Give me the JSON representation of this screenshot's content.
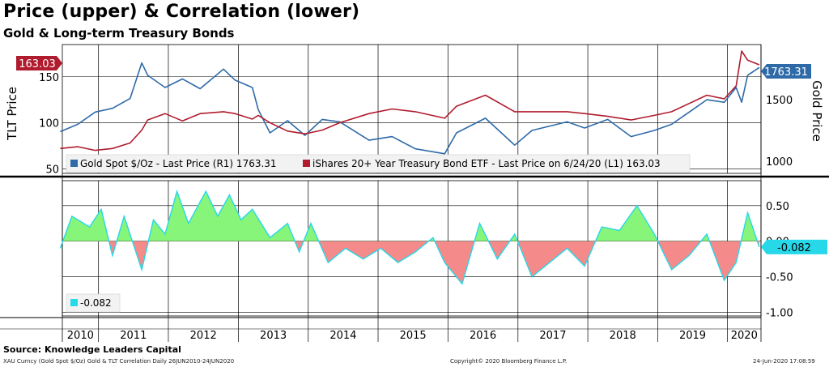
{
  "header": {
    "title": "Price (upper) & Correlation (lower)",
    "subtitle": "Gold & Long-term Treasury Bonds"
  },
  "footer": {
    "source": "Source: Knowledge Leaders Capital",
    "description": "XAU Curncy (Gold Spot  $/Oz) Gold & TLT Correlation  Daily 26JUN2010-24JUN2020",
    "copyright": "Copyright© 2020 Bloomberg Finance L.P.",
    "timestamp": "24-Jun-2020  17:08:59"
  },
  "colors": {
    "gold": "#2f6aa8",
    "tlt": "#b01c2e",
    "positive": "#86f57a",
    "negative": "#f48a8a",
    "corr_line": "#27d8e8",
    "panel_bg": "#ffffff"
  },
  "chart_data": [
    {
      "type": "line",
      "name": "upper-price",
      "x_range": [
        "2010-06-26",
        "2020-06-24"
      ],
      "ylabel_left": "TLT Price",
      "ylabel_right": "Gold Price",
      "ylim_left": [
        45,
        185
      ],
      "ylim_right": [
        900,
        1950
      ],
      "yticks_left": [
        50,
        100,
        150
      ],
      "yticks_right": [
        1000,
        1500
      ],
      "legend": {
        "position": "bottom",
        "items": [
          {
            "label": "Gold Spot $/Oz - Last Price (R1) 1763.31",
            "color": "#2f6aa8"
          },
          {
            "label": "iShares 20+ Year Treasury Bond ETF - Last Price on 6/24/20 (L1) 163.03",
            "color": "#b01c2e"
          }
        ]
      },
      "last_values": {
        "tlt": "163.03",
        "gold": "1763.31"
      },
      "series": [
        {
          "name": "Gold Spot $/Oz",
          "axis": "right",
          "x": [
            "2010-06",
            "2010-09",
            "2010-12",
            "2011-03",
            "2011-06",
            "2011-08",
            "2011-09",
            "2011-12",
            "2012-03",
            "2012-06",
            "2012-10",
            "2012-12",
            "2013-03",
            "2013-04",
            "2013-06",
            "2013-09",
            "2013-12",
            "2014-03",
            "2014-06",
            "2014-11",
            "2015-03",
            "2015-07",
            "2015-12",
            "2016-02",
            "2016-07",
            "2016-12",
            "2017-03",
            "2017-09",
            "2017-12",
            "2018-04",
            "2018-08",
            "2018-12",
            "2019-03",
            "2019-06",
            "2019-09",
            "2019-12",
            "2020-02",
            "2020-03",
            "2020-04",
            "2020-06"
          ],
          "values": [
            1240,
            1300,
            1400,
            1430,
            1510,
            1800,
            1700,
            1600,
            1670,
            1590,
            1750,
            1660,
            1600,
            1420,
            1230,
            1330,
            1210,
            1340,
            1320,
            1170,
            1200,
            1100,
            1060,
            1230,
            1350,
            1130,
            1250,
            1320,
            1270,
            1340,
            1200,
            1250,
            1300,
            1400,
            1500,
            1480,
            1600,
            1480,
            1700,
            1763
          ]
        },
        {
          "name": "iShares 20+ Year Treasury Bond ETF",
          "axis": "left",
          "x": [
            "2010-06",
            "2010-09",
            "2010-12",
            "2011-03",
            "2011-06",
            "2011-08",
            "2011-09",
            "2011-12",
            "2012-03",
            "2012-06",
            "2012-10",
            "2012-12",
            "2013-03",
            "2013-04",
            "2013-06",
            "2013-09",
            "2013-12",
            "2014-03",
            "2014-06",
            "2014-11",
            "2015-03",
            "2015-07",
            "2015-12",
            "2016-02",
            "2016-07",
            "2016-12",
            "2017-03",
            "2017-09",
            "2017-12",
            "2018-04",
            "2018-08",
            "2018-12",
            "2019-03",
            "2019-06",
            "2019-09",
            "2019-12",
            "2020-02",
            "2020-03",
            "2020-04",
            "2020-06"
          ],
          "values": [
            72,
            74,
            70,
            72,
            78,
            92,
            103,
            110,
            102,
            110,
            112,
            110,
            104,
            108,
            100,
            91,
            88,
            92,
            100,
            110,
            115,
            112,
            105,
            118,
            130,
            112,
            112,
            112,
            110,
            107,
            103,
            108,
            112,
            121,
            130,
            126,
            140,
            178,
            168,
            163
          ]
        }
      ]
    },
    {
      "type": "area",
      "name": "lower-correlation",
      "ylim": [
        -1.05,
        0.85
      ],
      "yticks": [
        "0.50",
        "0.00",
        "-0.50",
        "-1.00"
      ],
      "legend": {
        "position": "bottom-left",
        "items": [
          {
            "label": "-0.082",
            "color": "#27d8e8"
          }
        ]
      },
      "last_value": "-0.082",
      "series": [
        {
          "name": "Correlation",
          "x": [
            "2010-06",
            "2010-08",
            "2010-11",
            "2011-01",
            "2011-03",
            "2011-05",
            "2011-08",
            "2011-10",
            "2011-12",
            "2012-02",
            "2012-04",
            "2012-07",
            "2012-09",
            "2012-11",
            "2013-01",
            "2013-03",
            "2013-06",
            "2013-09",
            "2013-11",
            "2014-01",
            "2014-04",
            "2014-07",
            "2014-10",
            "2015-01",
            "2015-04",
            "2015-07",
            "2015-10",
            "2015-12",
            "2016-03",
            "2016-06",
            "2016-09",
            "2016-12",
            "2017-03",
            "2017-06",
            "2017-09",
            "2017-12",
            "2018-03",
            "2018-06",
            "2018-09",
            "2018-12",
            "2019-03",
            "2019-06",
            "2019-09",
            "2019-12",
            "2020-02",
            "2020-04",
            "2020-06"
          ],
          "values": [
            -0.1,
            0.35,
            0.2,
            0.45,
            -0.2,
            0.35,
            -0.4,
            0.3,
            0.1,
            0.7,
            0.25,
            0.7,
            0.35,
            0.65,
            0.3,
            0.45,
            0.05,
            0.25,
            -0.15,
            0.25,
            -0.3,
            -0.1,
            -0.25,
            -0.1,
            -0.3,
            -0.15,
            0.05,
            -0.3,
            -0.6,
            0.25,
            -0.25,
            0.1,
            -0.5,
            -0.3,
            -0.1,
            -0.35,
            0.2,
            0.15,
            0.5,
            0.1,
            -0.4,
            -0.2,
            0.1,
            -0.55,
            -0.3,
            0.4,
            -0.082
          ]
        }
      ]
    }
  ],
  "axis": {
    "years": [
      "2010",
      "2011",
      "2012",
      "2013",
      "2014",
      "2015",
      "2016",
      "2017",
      "2018",
      "2019",
      "2020"
    ]
  }
}
